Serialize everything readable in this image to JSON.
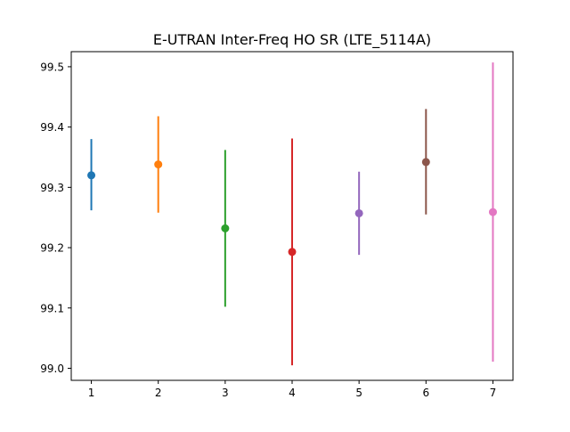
{
  "chart_data": {
    "type": "scatter",
    "title": "E-UTRAN Inter-Freq HO SR (LTE_5114A)",
    "xlabel": "",
    "ylabel": "",
    "xlim": [
      0.7,
      7.3
    ],
    "ylim": [
      98.98,
      99.525
    ],
    "x_ticks": [
      "1",
      "2",
      "3",
      "4",
      "5",
      "6",
      "7"
    ],
    "y_ticks": [
      "99.0",
      "99.1",
      "99.2",
      "99.3",
      "99.4",
      "99.5"
    ],
    "grid": false,
    "points": [
      {
        "x": 1,
        "y": 99.32,
        "low": 99.262,
        "high": 99.38,
        "color": "#1f77b4"
      },
      {
        "x": 2,
        "y": 99.338,
        "low": 99.258,
        "high": 99.418,
        "color": "#ff7f0e"
      },
      {
        "x": 3,
        "y": 99.232,
        "low": 99.102,
        "high": 99.362,
        "color": "#2ca02c"
      },
      {
        "x": 4,
        "y": 99.193,
        "low": 99.005,
        "high": 99.381,
        "color": "#d62728"
      },
      {
        "x": 5,
        "y": 99.257,
        "low": 99.188,
        "high": 99.326,
        "color": "#9467bd"
      },
      {
        "x": 6,
        "y": 99.342,
        "low": 99.255,
        "high": 99.43,
        "color": "#8c564b"
      },
      {
        "x": 7,
        "y": 99.259,
        "low": 99.011,
        "high": 99.507,
        "color": "#e377c2"
      }
    ]
  }
}
